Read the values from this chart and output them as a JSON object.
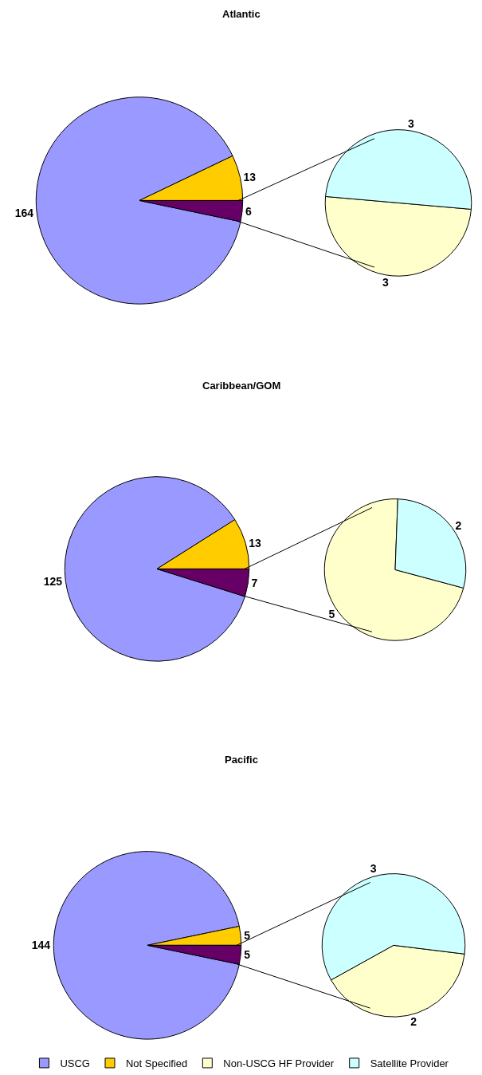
{
  "chart_data": [
    {
      "type": "pie",
      "title": "Atlantic",
      "categories": [
        "USCG",
        "Not Specified",
        null
      ],
      "values": [
        164,
        13,
        6
      ],
      "colors": [
        "#9999ff",
        "#ffcc00",
        "#660066"
      ],
      "data_labels": true,
      "legend": "bottom"
    },
    {
      "type": "pie",
      "categories": [
        "Non-USCG HF Provider",
        "Satellite Provider"
      ],
      "values": [
        3,
        3
      ],
      "colors": [
        "#ffffcc",
        "#ccffff"
      ],
      "data_labels": true,
      "legend": "bottom"
    },
    {
      "type": "pie",
      "title": "Caribbean/GOM",
      "categories": [
        null,
        null,
        null
      ],
      "values": [
        125,
        13,
        7
      ],
      "colors": [
        "#9999ff",
        "#ffcc00",
        "#660066"
      ],
      "data_labels": true
    },
    {
      "type": "pie",
      "categories": [
        null,
        null
      ],
      "values": [
        5,
        2
      ],
      "colors": [
        "#ffffcc",
        "#ccffff"
      ],
      "data_labels": true
    },
    {
      "type": "pie",
      "title": "Pacific",
      "categories": [
        null,
        null,
        null
      ],
      "values": [
        144,
        5,
        5
      ],
      "colors": [
        "#9999ff",
        "#ffcc00",
        "#660066"
      ],
      "data_labels": true
    },
    {
      "type": "pie",
      "categories": [
        null,
        null
      ],
      "values": [
        2,
        3
      ],
      "colors": [
        "#ffffcc",
        "#ccffff"
      ],
      "data_labels": true
    }
  ]
}
